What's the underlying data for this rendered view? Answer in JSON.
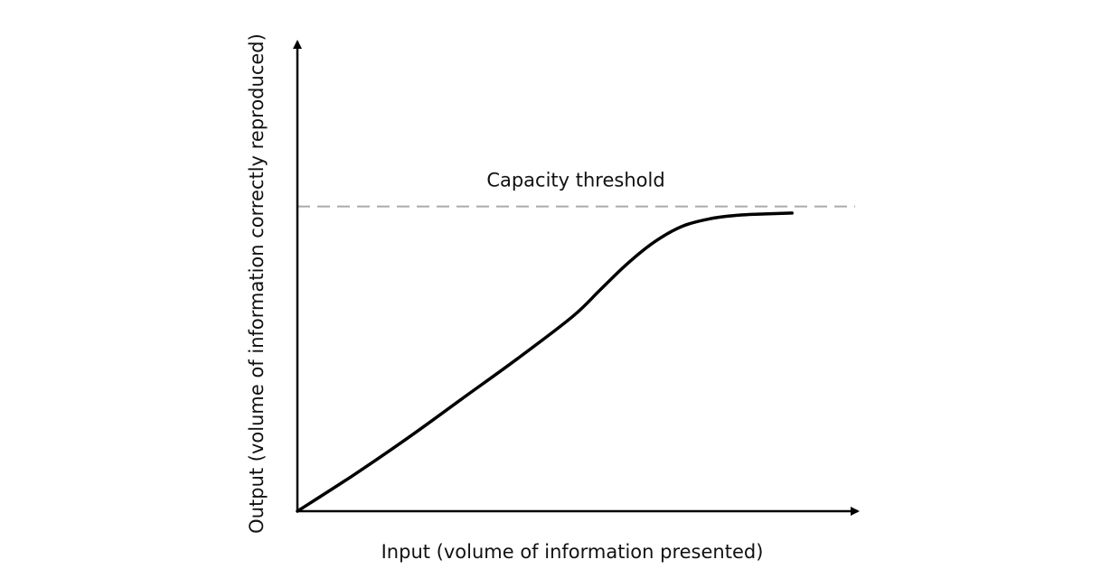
{
  "chart_data": {
    "type": "line",
    "title": "",
    "xlabel": "Input (volume of information presented)",
    "ylabel": "Output (volume of information correctly reproduced)",
    "xlim": [
      0,
      1
    ],
    "ylim": [
      0,
      1
    ],
    "grid": false,
    "legend": "none",
    "ticks": "none",
    "threshold": {
      "label": "Capacity threshold",
      "value": 0.69
    },
    "series": [
      {
        "x": [
          0,
          0.1,
          0.2,
          0.3,
          0.4,
          0.5,
          0.55,
          0.6,
          0.65,
          0.7,
          0.75,
          0.8,
          0.85,
          0.9
        ],
        "y": [
          0,
          0.08,
          0.165,
          0.255,
          0.345,
          0.44,
          0.5,
          0.56,
          0.61,
          0.645,
          0.662,
          0.67,
          0.673,
          0.675
        ]
      }
    ],
    "colors": {
      "curve": "#000000",
      "axes": "#000000",
      "threshold": "#aaaaaa"
    }
  }
}
